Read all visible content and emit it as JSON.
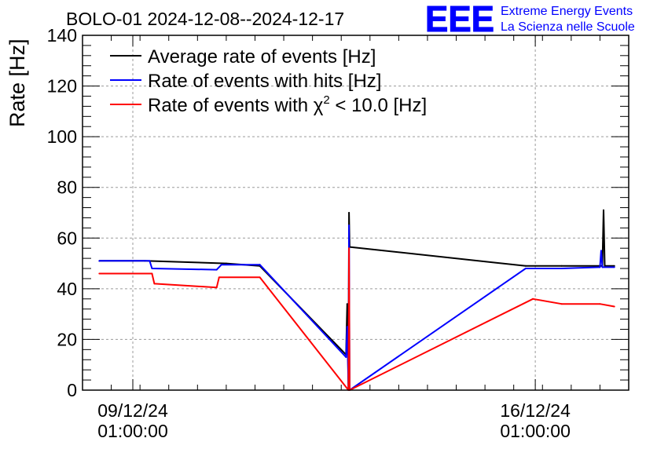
{
  "chart_data": {
    "type": "line",
    "title": "BOLO-01 2024-12-08--2024-12-17",
    "ylabel": "Rate [Hz]",
    "xlabel": "",
    "ylim": [
      0,
      140
    ],
    "yticks": [
      0,
      20,
      40,
      60,
      80,
      100,
      120,
      140
    ],
    "xlim": [
      "2024-12-08 04:00",
      "2024-12-17 16:00"
    ],
    "xticks": [
      {
        "x": "2024-12-09 01:00:00",
        "date": "09/12/24",
        "time": "01:00:00"
      },
      {
        "x": "2024-12-16 01:00:00",
        "date": "16/12/24",
        "time": "01:00:00"
      }
    ],
    "grid": true,
    "legend_position": "top-left",
    "legend_entries": [
      "Average rate of events [Hz]",
      "Rate of events with hits [Hz]",
      "Rate of events with χ² < 10.0 [Hz]"
    ],
    "legend_chi2": {
      "prefix": "Rate of events with ",
      "symbol": "χ",
      "superscript": "2",
      "suffix": " < 10.0 [Hz]"
    },
    "series": [
      {
        "name": "Average rate of events [Hz]",
        "color": "#000000",
        "points": [
          [
            "2024-12-08 11:00",
            51
          ],
          [
            "2024-12-09 06:00",
            51
          ],
          [
            "2024-12-10 00:00",
            50.5
          ],
          [
            "2024-12-10 16:00",
            50
          ],
          [
            "2024-12-11 06:00",
            49
          ],
          [
            "2024-12-12 18:00",
            14
          ],
          [
            "2024-12-12 18:30",
            34
          ],
          [
            "2024-12-12 19:00",
            0
          ],
          [
            "2024-12-12 19:15",
            70
          ],
          [
            "2024-12-12 19:30",
            56.5
          ],
          [
            "2024-12-15 21:00",
            49
          ],
          [
            "2024-12-16 12:00",
            49
          ],
          [
            "2024-12-17 05:00",
            49
          ],
          [
            "2024-12-17 05:30",
            71
          ],
          [
            "2024-12-17 06:00",
            49
          ],
          [
            "2024-12-17 10:00",
            49
          ]
        ]
      },
      {
        "name": "Rate of events with hits [Hz]",
        "color": "#0000ff",
        "points": [
          [
            "2024-12-08 11:00",
            51
          ],
          [
            "2024-12-09 08:00",
            51
          ],
          [
            "2024-12-09 09:00",
            48
          ],
          [
            "2024-12-10 12:00",
            47.5
          ],
          [
            "2024-12-10 14:00",
            49.5
          ],
          [
            "2024-12-11 06:00",
            49.5
          ],
          [
            "2024-12-12 18:00",
            13
          ],
          [
            "2024-12-12 18:30",
            25
          ],
          [
            "2024-12-12 19:00",
            0
          ],
          [
            "2024-12-12 19:15",
            65
          ],
          [
            "2024-12-12 19:30",
            0
          ],
          [
            "2024-12-15 21:00",
            48
          ],
          [
            "2024-12-16 12:00",
            48
          ],
          [
            "2024-12-17 04:00",
            48.5
          ],
          [
            "2024-12-17 04:30",
            55
          ],
          [
            "2024-12-17 05:00",
            48.5
          ],
          [
            "2024-12-17 10:00",
            48.5
          ]
        ]
      },
      {
        "name": "Rate of events with χ² < 10.0 [Hz]",
        "color": "#ff0000",
        "points": [
          [
            "2024-12-08 11:00",
            46
          ],
          [
            "2024-12-09 09:00",
            46
          ],
          [
            "2024-12-09 10:00",
            42
          ],
          [
            "2024-12-10 12:00",
            40.5
          ],
          [
            "2024-12-10 13:00",
            44.5
          ],
          [
            "2024-12-11 06:00",
            44.5
          ],
          [
            "2024-12-12 19:00",
            0
          ],
          [
            "2024-12-12 19:15",
            56
          ],
          [
            "2024-12-12 19:30",
            0
          ],
          [
            "2024-12-16 00:00",
            36
          ],
          [
            "2024-12-16 12:00",
            34
          ],
          [
            "2024-12-17 04:00",
            34
          ],
          [
            "2024-12-17 10:00",
            33
          ]
        ]
      }
    ]
  },
  "logo": {
    "mark": "EEE",
    "line1": "Extreme Energy Events",
    "line2": "La Scienza nelle Scuole",
    "color": "#0000ff"
  }
}
